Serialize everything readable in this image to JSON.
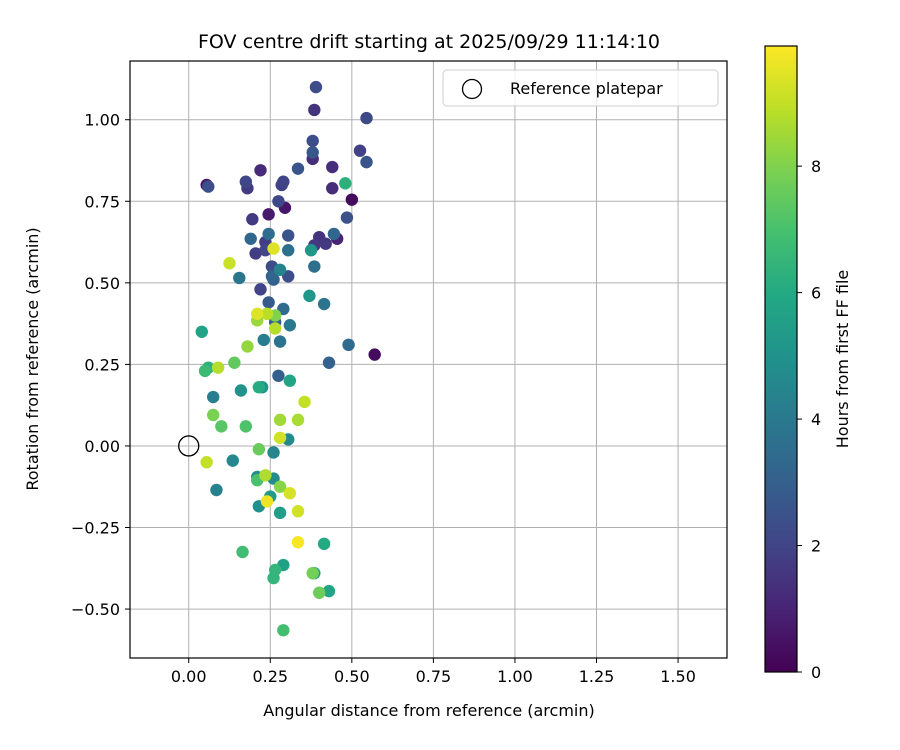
{
  "chart_data": {
    "type": "scatter",
    "title": "FOV centre drift starting at 2025/09/29 11:14:10",
    "xlabel": "Angular distance from reference (arcmin)",
    "ylabel": "Rotation from reference (arcmin)",
    "xlim": [
      -0.18,
      1.65
    ],
    "ylim": [
      -0.65,
      1.18
    ],
    "xticks": [
      0.0,
      0.25,
      0.5,
      0.75,
      1.0,
      1.25,
      1.5
    ],
    "xtick_labels": [
      "0.00",
      "0.25",
      "0.50",
      "0.75",
      "1.00",
      "1.25",
      "1.50"
    ],
    "yticks": [
      -0.5,
      -0.25,
      0.0,
      0.25,
      0.5,
      0.75,
      1.0
    ],
    "ytick_labels": [
      "−0.50",
      "−0.25",
      "0.00",
      "0.25",
      "0.50",
      "0.75",
      "1.00"
    ],
    "grid": true,
    "legend": {
      "position": "top-right",
      "entries": [
        {
          "label": "Reference platepar",
          "marker": "open-circle"
        }
      ]
    },
    "reference_point": {
      "x": 0.0,
      "y": 0.0
    },
    "colorbar": {
      "label": "Hours from first FF file",
      "colormap": "viridis",
      "range": [
        0,
        9.9
      ],
      "ticks": [
        0,
        2,
        4,
        6,
        8
      ],
      "tick_labels": [
        "0",
        "2",
        "4",
        "6",
        "8"
      ]
    },
    "points": [
      {
        "x": 0.5,
        "y": 0.755,
        "h": 0.3
      },
      {
        "x": 0.57,
        "y": 0.28,
        "h": 0.3
      },
      {
        "x": 0.055,
        "y": 0.8,
        "h": 0.6
      },
      {
        "x": 0.295,
        "y": 0.73,
        "h": 0.6
      },
      {
        "x": 0.245,
        "y": 0.71,
        "h": 0.7
      },
      {
        "x": 0.455,
        "y": 0.635,
        "h": 1.0
      },
      {
        "x": 0.22,
        "y": 0.845,
        "h": 1.2
      },
      {
        "x": 0.44,
        "y": 0.79,
        "h": 1.3
      },
      {
        "x": 0.44,
        "y": 0.855,
        "h": 1.3
      },
      {
        "x": 0.38,
        "y": 0.88,
        "h": 1.3
      },
      {
        "x": 0.385,
        "y": 1.03,
        "h": 1.5
      },
      {
        "x": 0.4,
        "y": 0.64,
        "h": 1.5
      },
      {
        "x": 0.385,
        "y": 0.615,
        "h": 1.6
      },
      {
        "x": 0.42,
        "y": 0.62,
        "h": 1.6
      },
      {
        "x": 0.195,
        "y": 0.695,
        "h": 1.7
      },
      {
        "x": 0.18,
        "y": 0.79,
        "h": 1.7
      },
      {
        "x": 0.205,
        "y": 0.59,
        "h": 1.8
      },
      {
        "x": 0.235,
        "y": 0.625,
        "h": 1.8
      },
      {
        "x": 0.525,
        "y": 0.905,
        "h": 1.9
      },
      {
        "x": 0.285,
        "y": 0.8,
        "h": 1.9
      },
      {
        "x": 0.29,
        "y": 0.81,
        "h": 2.0
      },
      {
        "x": 0.235,
        "y": 0.6,
        "h": 2.0
      },
      {
        "x": 0.22,
        "y": 0.48,
        "h": 2.0
      },
      {
        "x": 0.275,
        "y": 0.75,
        "h": 2.1
      },
      {
        "x": 0.175,
        "y": 0.81,
        "h": 2.1
      },
      {
        "x": 0.545,
        "y": 1.005,
        "h": 2.2
      },
      {
        "x": 0.39,
        "y": 1.1,
        "h": 2.3
      },
      {
        "x": 0.255,
        "y": 0.55,
        "h": 2.3
      },
      {
        "x": 0.38,
        "y": 0.935,
        "h": 2.3
      },
      {
        "x": 0.305,
        "y": 0.52,
        "h": 2.4
      },
      {
        "x": 0.06,
        "y": 0.795,
        "h": 2.4
      },
      {
        "x": 0.485,
        "y": 0.7,
        "h": 2.5
      },
      {
        "x": 0.305,
        "y": 0.645,
        "h": 2.5
      },
      {
        "x": 0.335,
        "y": 0.85,
        "h": 2.6
      },
      {
        "x": 0.545,
        "y": 0.87,
        "h": 2.6
      },
      {
        "x": 0.38,
        "y": 0.9,
        "h": 2.7
      },
      {
        "x": 0.245,
        "y": 0.44,
        "h": 2.8
      },
      {
        "x": 0.265,
        "y": 0.38,
        "h": 2.9
      },
      {
        "x": 0.275,
        "y": 0.215,
        "h": 3.0
      },
      {
        "x": 0.26,
        "y": 0.51,
        "h": 3.0
      },
      {
        "x": 0.43,
        "y": 0.255,
        "h": 3.1
      },
      {
        "x": 0.255,
        "y": 0.52,
        "h": 3.2
      },
      {
        "x": 0.19,
        "y": 0.635,
        "h": 3.3
      },
      {
        "x": 0.445,
        "y": 0.65,
        "h": 3.3
      },
      {
        "x": 0.29,
        "y": 0.42,
        "h": 3.4
      },
      {
        "x": 0.49,
        "y": 0.31,
        "h": 3.4
      },
      {
        "x": 0.245,
        "y": 0.65,
        "h": 3.5
      },
      {
        "x": 0.305,
        "y": 0.6,
        "h": 3.6
      },
      {
        "x": 0.385,
        "y": 0.55,
        "h": 3.6
      },
      {
        "x": 0.28,
        "y": 0.32,
        "h": 3.8
      },
      {
        "x": 0.415,
        "y": 0.435,
        "h": 3.8
      },
      {
        "x": 0.155,
        "y": 0.515,
        "h": 3.9
      },
      {
        "x": 0.31,
        "y": 0.37,
        "h": 4.0
      },
      {
        "x": 0.23,
        "y": 0.325,
        "h": 4.2
      },
      {
        "x": 0.075,
        "y": 0.15,
        "h": 4.2
      },
      {
        "x": 0.085,
        "y": -0.135,
        "h": 4.3
      },
      {
        "x": 0.28,
        "y": 0.54,
        "h": 4.4
      },
      {
        "x": 0.26,
        "y": -0.02,
        "h": 4.5
      },
      {
        "x": 0.135,
        "y": -0.045,
        "h": 4.6
      },
      {
        "x": 0.305,
        "y": 0.02,
        "h": 4.7
      },
      {
        "x": 0.21,
        "y": -0.095,
        "h": 4.8
      },
      {
        "x": 0.26,
        "y": -0.1,
        "h": 4.8
      },
      {
        "x": 0.215,
        "y": -0.185,
        "h": 4.9
      },
      {
        "x": 0.16,
        "y": 0.17,
        "h": 5.0
      },
      {
        "x": 0.225,
        "y": 0.18,
        "h": 5.0
      },
      {
        "x": 0.37,
        "y": 0.46,
        "h": 5.2
      },
      {
        "x": 0.375,
        "y": 0.6,
        "h": 5.2
      },
      {
        "x": 0.25,
        "y": -0.155,
        "h": 5.4
      },
      {
        "x": 0.28,
        "y": -0.205,
        "h": 5.5
      },
      {
        "x": 0.385,
        "y": -0.39,
        "h": 5.6
      },
      {
        "x": 0.29,
        "y": -0.365,
        "h": 5.6
      },
      {
        "x": 0.04,
        "y": 0.35,
        "h": 5.7
      },
      {
        "x": 0.31,
        "y": 0.2,
        "h": 5.8
      },
      {
        "x": 0.43,
        "y": -0.445,
        "h": 5.8
      },
      {
        "x": 0.415,
        "y": -0.3,
        "h": 6.0
      },
      {
        "x": 0.215,
        "y": 0.18,
        "h": 6.1
      },
      {
        "x": 0.48,
        "y": 0.805,
        "h": 6.3
      },
      {
        "x": 0.06,
        "y": 0.24,
        "h": 6.3
      },
      {
        "x": 0.265,
        "y": -0.38,
        "h": 6.5
      },
      {
        "x": 0.26,
        "y": -0.405,
        "h": 6.5
      },
      {
        "x": 0.05,
        "y": 0.23,
        "h": 6.7
      },
      {
        "x": 0.165,
        "y": -0.325,
        "h": 6.8
      },
      {
        "x": 0.29,
        "y": -0.565,
        "h": 6.9
      },
      {
        "x": 0.21,
        "y": -0.105,
        "h": 7.0
      },
      {
        "x": 0.175,
        "y": 0.06,
        "h": 7.1
      },
      {
        "x": 0.1,
        "y": 0.06,
        "h": 7.3
      },
      {
        "x": 0.14,
        "y": 0.255,
        "h": 7.5
      },
      {
        "x": 0.215,
        "y": -0.01,
        "h": 7.6
      },
      {
        "x": 0.4,
        "y": -0.45,
        "h": 7.7
      },
      {
        "x": 0.38,
        "y": -0.39,
        "h": 7.8
      },
      {
        "x": 0.075,
        "y": 0.095,
        "h": 7.9
      },
      {
        "x": 0.265,
        "y": 0.4,
        "h": 8.0
      },
      {
        "x": 0.28,
        "y": -0.125,
        "h": 8.1
      },
      {
        "x": 0.18,
        "y": 0.305,
        "h": 8.3
      },
      {
        "x": 0.21,
        "y": 0.385,
        "h": 8.4
      },
      {
        "x": 0.28,
        "y": 0.08,
        "h": 8.5
      },
      {
        "x": 0.335,
        "y": 0.08,
        "h": 8.6
      },
      {
        "x": 0.235,
        "y": -0.09,
        "h": 8.7
      },
      {
        "x": 0.09,
        "y": 0.24,
        "h": 8.8
      },
      {
        "x": 0.265,
        "y": 0.36,
        "h": 8.8
      },
      {
        "x": 0.24,
        "y": 0.405,
        "h": 8.9
      },
      {
        "x": 0.055,
        "y": -0.05,
        "h": 9.0
      },
      {
        "x": 0.355,
        "y": 0.135,
        "h": 9.0
      },
      {
        "x": 0.125,
        "y": 0.56,
        "h": 9.1
      },
      {
        "x": 0.335,
        "y": -0.2,
        "h": 9.2
      },
      {
        "x": 0.28,
        "y": 0.025,
        "h": 9.2
      },
      {
        "x": 0.31,
        "y": -0.145,
        "h": 9.3
      },
      {
        "x": 0.26,
        "y": 0.605,
        "h": 9.4
      },
      {
        "x": 0.21,
        "y": 0.405,
        "h": 9.4
      },
      {
        "x": 0.24,
        "y": -0.17,
        "h": 9.6
      },
      {
        "x": 0.335,
        "y": -0.295,
        "h": 9.8
      }
    ]
  }
}
